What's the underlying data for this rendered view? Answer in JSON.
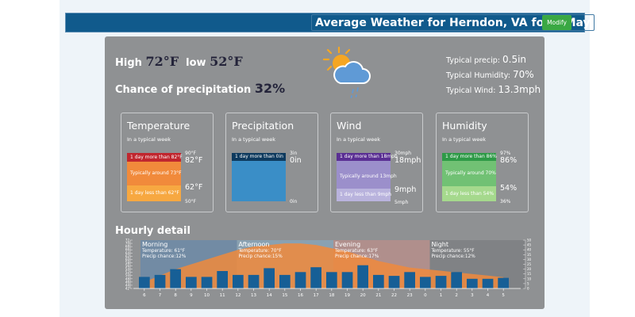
{
  "header": {
    "title": "Average Weather for Herndon, VA for 9 May",
    "modify_label": "Modify",
    "bar_color": "#105a8c",
    "button_color": "#3aa843"
  },
  "summary": {
    "high_label": "High",
    "high_value": "72°F",
    "low_label": "low",
    "low_value": "52°F",
    "precip_chance_label": "Chance of precipitation",
    "precip_chance_value": "32%",
    "weather_icon": "sun-cloud-rain-icon",
    "typical": [
      {
        "label": "Typical precip:",
        "value": "0.5in"
      },
      {
        "label": "Typical Humidity:",
        "value": "70%"
      },
      {
        "label": "Typical Wind:",
        "value": "13.3mph"
      }
    ]
  },
  "cards": [
    {
      "title": "Temperature",
      "subtitle": "In a typical week",
      "max_label": "90°F",
      "upper_label": "82°F",
      "lower_label": "62°F",
      "min_label": "50°F",
      "segments": [
        {
          "text": "1 day more than 82°F",
          "color": "#c0262e"
        },
        {
          "text": "Typically around 73°F",
          "color": "#f18a3b"
        },
        {
          "text": "1 day less than 62°F",
          "color": "#f7a841"
        }
      ]
    },
    {
      "title": "Precipitation",
      "subtitle": "In a typical week",
      "max_label": "3in",
      "upper_label": "0in",
      "lower_label": "",
      "min_label": "0in",
      "segments": [
        {
          "text": "1 day more than 0in",
          "color": "#0e3a5e"
        },
        {
          "text": "",
          "color": "#3a8ec7"
        }
      ]
    },
    {
      "title": "Wind",
      "subtitle": "In a typical week",
      "max_label": "30mph",
      "upper_label": "18mph",
      "lower_label": "9mph",
      "min_label": "5mph",
      "segments": [
        {
          "text": "1 day more than 18mph",
          "color": "#5a2f93"
        },
        {
          "text": "Typically around 13mph",
          "color": "#9b8fcb"
        },
        {
          "text": "1 day less than 9mph",
          "color": "#b9b3dd"
        }
      ]
    },
    {
      "title": "Humidity",
      "subtitle": "In a typical week",
      "max_label": "97%",
      "upper_label": "86%",
      "lower_label": "54%",
      "min_label": "36%",
      "segments": [
        {
          "text": "1 day more than 86%",
          "color": "#2e9a47"
        },
        {
          "text": "Typically around 70%",
          "color": "#71c174"
        },
        {
          "text": "1 day less than 54%",
          "color": "#a5d98d"
        }
      ]
    }
  ],
  "hourly": {
    "title": "Hourly detail",
    "periods": [
      {
        "name": "Morning",
        "temperature": "Temperature: 61°F",
        "precip": "Precip chance:12%",
        "color": "#6f8ba6"
      },
      {
        "name": "Afternoon",
        "temperature": "Temperature: 70°F",
        "precip": "Precip chance:15%",
        "color": "#8aa3b5"
      },
      {
        "name": "Evening",
        "temperature": "Temperature: 63°F",
        "precip": "Precip chance:17%",
        "color": "#b48f8c"
      },
      {
        "name": "Night",
        "temperature": "Temperature: 55°F",
        "precip": "Precip chance:12%",
        "color": "#7e8184"
      }
    ]
  },
  "chart_data": {
    "type": "bar",
    "title": "Hourly detail",
    "categories": [
      "6",
      "7",
      "8",
      "9",
      "10",
      "11",
      "12",
      "13",
      "14",
      "15",
      "16",
      "17",
      "18",
      "19",
      "20",
      "21",
      "22",
      "23",
      "0",
      "1",
      "2",
      "3",
      "4",
      "5"
    ],
    "series": [
      {
        "name": "Precip chance (%)",
        "type": "bar",
        "axis": "right",
        "color": "#175f96",
        "values": [
          12,
          14,
          20,
          12,
          12,
          18,
          14,
          14,
          21,
          14,
          17,
          22,
          17,
          17,
          24,
          14,
          13,
          17,
          12,
          13,
          17,
          10,
          10,
          11
        ]
      },
      {
        "name": "Temperature (°F)",
        "type": "area",
        "axis": "left",
        "color": "#f08a3c",
        "values": [
          46,
          50,
          54,
          57,
          60,
          63,
          66,
          68,
          69,
          70,
          70,
          69,
          67,
          65,
          62,
          59,
          57,
          55,
          54,
          53,
          52,
          51,
          50,
          49
        ]
      }
    ],
    "left_axis": {
      "label": "Temperature (°F)",
      "range": [
        42,
        72
      ],
      "ticks": [
        42,
        44,
        46,
        48,
        50,
        52,
        54,
        56,
        58,
        60,
        62,
        64,
        66,
        68,
        70,
        72
      ]
    },
    "right_axis": {
      "label": "Precip chance (%)",
      "range": [
        0,
        50
      ],
      "ticks": [
        0,
        5,
        10,
        15,
        20,
        25,
        30,
        35,
        40,
        45,
        50
      ]
    },
    "xlabel": "",
    "ylabel": "",
    "grid": false
  }
}
